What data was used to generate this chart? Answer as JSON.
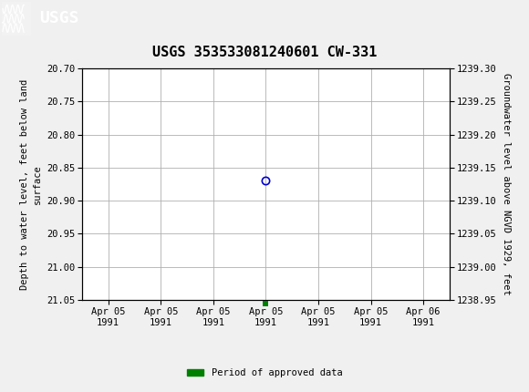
{
  "title": "USGS 353533081240601 CW-331",
  "ylabel_left": "Depth to water level, feet below land\nsurface",
  "ylabel_right": "Groundwater level above NGVD 1929, feet",
  "ylim_left_top": 20.7,
  "ylim_left_bottom": 21.05,
  "ylim_right_top": 1239.3,
  "ylim_right_bottom": 1238.95,
  "yticks_left": [
    20.7,
    20.75,
    20.8,
    20.85,
    20.9,
    20.95,
    21.0,
    21.05
  ],
  "yticks_right": [
    1239.3,
    1239.25,
    1239.2,
    1239.15,
    1239.1,
    1239.05,
    1239.0,
    1238.95
  ],
  "data_point_x": 3,
  "data_point_y": 20.87,
  "data_point_color": "#0000cc",
  "green_square_x": 3,
  "green_color": "#008000",
  "legend_label": "Period of approved data",
  "header_color": "#1a6b3c",
  "background_color": "#f0f0f0",
  "plot_bg_color": "#ffffff",
  "grid_color": "#b0b0b0",
  "title_fontsize": 11,
  "axis_label_fontsize": 7.5,
  "tick_fontsize": 7.5,
  "xtick_labels": [
    "Apr 05\n1991",
    "Apr 05\n1991",
    "Apr 05\n1991",
    "Apr 05\n1991",
    "Apr 05\n1991",
    "Apr 05\n1991",
    "Apr 06\n1991"
  ],
  "xtick_positions": [
    0,
    1,
    2,
    3,
    4,
    5,
    6
  ],
  "xlim": [
    -0.5,
    6.5
  ],
  "font_family": "DejaVu Sans Mono"
}
